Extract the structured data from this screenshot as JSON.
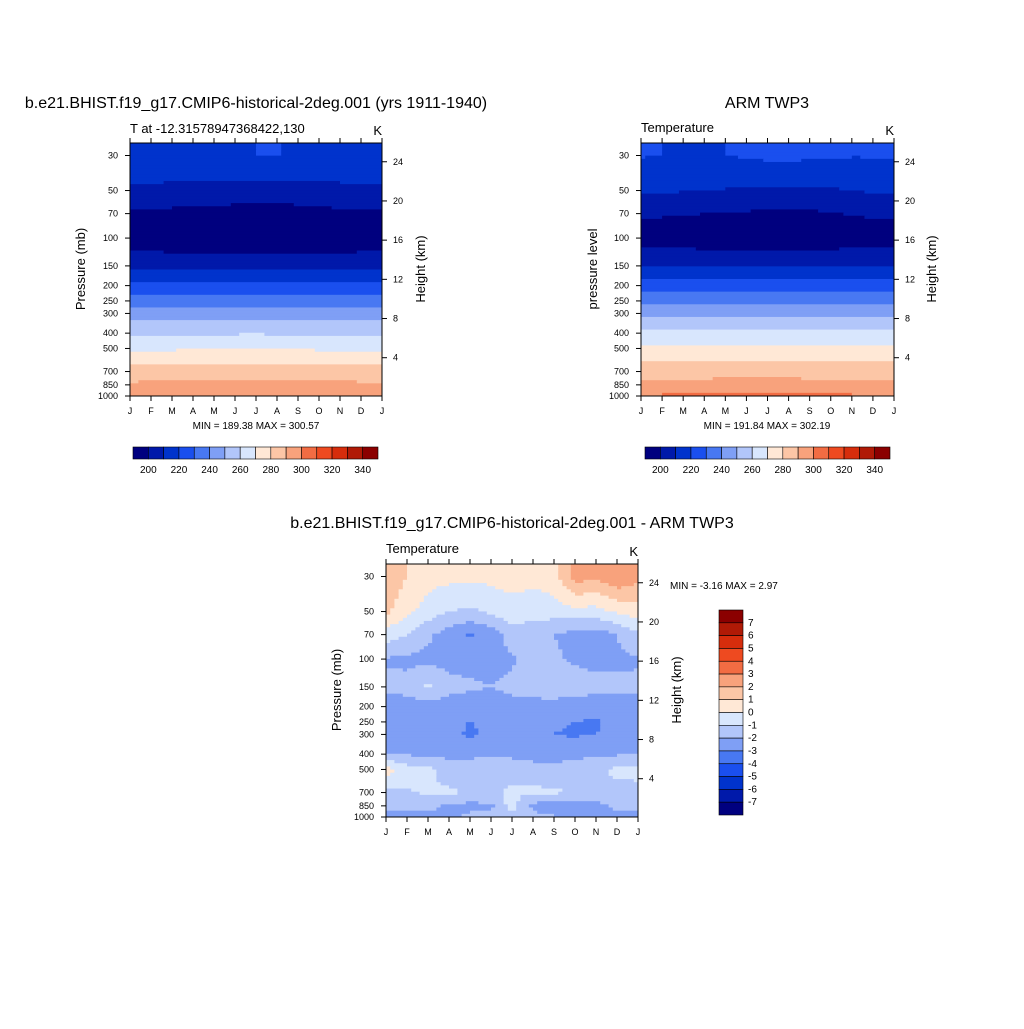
{
  "chart_data": [
    {
      "type": "heatmap",
      "title": "b.e21.BHIST.f19_g17.CMIP6-historical-2deg.001 (yrs 1911-1940)",
      "left_string": "T at -12.31578947368422,130",
      "right_string": "K",
      "ylabel": "Pressure (mb)",
      "ylabel_right": "Height (km)",
      "x_ticks": [
        "J",
        "F",
        "M",
        "A",
        "M",
        "J",
        "J",
        "A",
        "S",
        "O",
        "N",
        "D",
        "J"
      ],
      "y_ticks": [
        "30",
        "50",
        "70",
        "100",
        "150",
        "200",
        "250",
        "300",
        "400",
        "500",
        "700",
        "850",
        "1000"
      ],
      "y_right_ticks": [
        "24",
        "20",
        "16",
        "12",
        "8",
        "4"
      ],
      "stats": "MIN = 189.38 MAX = 300.57",
      "levels": [
        200,
        210,
        220,
        230,
        240,
        250,
        260,
        270,
        280,
        290,
        300,
        310,
        320,
        330,
        340
      ],
      "colorbar_labels": [
        "200",
        "220",
        "240",
        "260",
        "280",
        "300",
        "320",
        "340"
      ],
      "pressure_levels": [
        1000,
        850,
        700,
        500,
        400,
        300,
        250,
        200,
        150,
        100,
        70,
        50,
        30
      ],
      "months": [
        0,
        1,
        2,
        3,
        4,
        5,
        6,
        7,
        8,
        9,
        10,
        11,
        12
      ],
      "values": [
        [
          298.5,
          298.8,
          299.2,
          299.6,
          300.2,
          300.5,
          300.6,
          300.3,
          299.8,
          299.4,
          299,
          298.7,
          298.5
        ],
        [
          291.5,
          291.8,
          292.2,
          292.8,
          293.4,
          293.8,
          293.8,
          293.4,
          292.8,
          292.2,
          291.8,
          291.6,
          291.5
        ],
        [
          284.5,
          284.6,
          284.8,
          285,
          285.3,
          285.6,
          285.7,
          285.5,
          285.1,
          284.8,
          284.6,
          284.5,
          284.5
        ],
        [
          268.5,
          268.6,
          268.8,
          269,
          269.2,
          269.4,
          269.5,
          269.3,
          269,
          268.8,
          268.6,
          268.5,
          268.5
        ],
        [
          258.5,
          258.6,
          258.7,
          258.8,
          259,
          259.2,
          259.3,
          259.1,
          258.9,
          258.7,
          258.6,
          258.5,
          258.5
        ],
        [
          244.5,
          244.6,
          244.7,
          244.8,
          245,
          245.2,
          245.3,
          245.1,
          244.9,
          244.7,
          244.6,
          244.5,
          244.5
        ],
        [
          234.5,
          234.6,
          234.7,
          234.8,
          235,
          235.2,
          235.3,
          235.1,
          234.9,
          234.7,
          234.6,
          234.5,
          234.5
        ],
        [
          222.5,
          222.6,
          222.7,
          222.8,
          223,
          223.2,
          223.3,
          223.1,
          222.9,
          222.7,
          222.6,
          222.5,
          222.5
        ],
        [
          207.5,
          207.6,
          207.7,
          207.8,
          208,
          208.2,
          208.3,
          208.1,
          207.9,
          207.7,
          207.6,
          207.5,
          207.5
        ],
        [
          193,
          192.5,
          192,
          191,
          190.5,
          190,
          189.5,
          189.4,
          189.8,
          190.5,
          191.5,
          192.5,
          193
        ],
        [
          198.5,
          198,
          197.5,
          197,
          196.5,
          196,
          195.5,
          195.5,
          196,
          197,
          198,
          198.3,
          198.5
        ],
        [
          208.5,
          208,
          207.5,
          207,
          206.5,
          206,
          205.8,
          206,
          206.5,
          207,
          207.5,
          208,
          208.5
        ],
        [
          218.5,
          218,
          217.5,
          217.5,
          218,
          219,
          220,
          220.2,
          219.5,
          218.8,
          218.5,
          218.5,
          218.5
        ]
      ]
    },
    {
      "type": "heatmap",
      "title": "ARM TWP3",
      "left_string": "Temperature",
      "right_string": "K",
      "ylabel": "pressure level",
      "ylabel_right": "Height (km)",
      "x_ticks": [
        "J",
        "F",
        "M",
        "A",
        "M",
        "J",
        "J",
        "A",
        "S",
        "O",
        "N",
        "D",
        "J"
      ],
      "y_ticks": [
        "30",
        "50",
        "70",
        "100",
        "150",
        "200",
        "250",
        "300",
        "400",
        "500",
        "700",
        "850",
        "1000"
      ],
      "y_right_ticks": [
        "24",
        "20",
        "16",
        "12",
        "8",
        "4"
      ],
      "stats": "MIN = 191.84 MAX = 302.19",
      "levels": [
        200,
        210,
        220,
        230,
        240,
        250,
        260,
        270,
        280,
        290,
        300,
        310,
        320,
        330,
        340
      ],
      "colorbar_labels": [
        "200",
        "220",
        "240",
        "260",
        "280",
        "300",
        "320",
        "340"
      ],
      "pressure_levels": [
        1000,
        850,
        700,
        500,
        400,
        300,
        250,
        200,
        150,
        100,
        70,
        50,
        30
      ],
      "months": [
        0,
        1,
        2,
        3,
        4,
        5,
        6,
        7,
        8,
        9,
        10,
        11,
        12
      ],
      "values": [
        [
          301,
          301.2,
          301.5,
          301.8,
          302,
          302.1,
          302.2,
          302,
          301.8,
          301.5,
          301.2,
          301,
          301
        ],
        [
          292.5,
          292.7,
          293,
          293.3,
          293.6,
          293.9,
          294,
          293.7,
          293.3,
          293,
          292.7,
          292.5,
          292.5
        ],
        [
          285.5,
          285.6,
          285.8,
          286,
          286.2,
          286.4,
          286.5,
          286.3,
          286,
          285.8,
          285.6,
          285.5,
          285.5
        ],
        [
          271.5,
          271.6,
          271.7,
          271.8,
          272,
          272.2,
          272.3,
          272.1,
          271.9,
          271.7,
          271.6,
          271.5,
          271.5
        ],
        [
          261.5,
          261.6,
          261.7,
          261.8,
          262,
          262.2,
          262.3,
          262.1,
          261.9,
          261.7,
          261.6,
          261.5,
          261.5
        ],
        [
          247.5,
          247.6,
          247.7,
          247.8,
          248,
          248.2,
          248.3,
          248.1,
          247.9,
          247.7,
          247.6,
          247.5,
          247.5
        ],
        [
          237,
          237.1,
          237.2,
          237.3,
          237.5,
          237.7,
          237.8,
          237.6,
          237.4,
          237.2,
          237.1,
          237,
          237
        ],
        [
          225,
          225.1,
          225.2,
          225.3,
          225.5,
          225.7,
          225.8,
          225.6,
          225.4,
          225.2,
          225.1,
          225,
          225
        ],
        [
          209.5,
          209.6,
          209.7,
          209.8,
          210,
          210.2,
          210.3,
          210.1,
          209.9,
          209.7,
          209.6,
          209.5,
          209.5
        ],
        [
          195,
          194.5,
          194,
          193.5,
          193,
          192.5,
          192,
          191.84,
          192.5,
          193.5,
          194.3,
          194.8,
          195
        ],
        [
          201.5,
          201,
          200.5,
          200,
          199.5,
          199,
          198.5,
          198,
          198.5,
          199.5,
          200.5,
          201.2,
          201.5
        ],
        [
          211.5,
          211,
          210.5,
          210,
          209.5,
          209,
          208.5,
          208.2,
          208.5,
          209,
          210,
          211,
          211.5
        ],
        [
          220.5,
          220,
          219.5,
          219.5,
          220,
          221,
          222,
          222.5,
          221.5,
          220.8,
          220.5,
          220.5,
          220.5
        ]
      ]
    },
    {
      "type": "heatmap",
      "title": "b.e21.BHIST.f19_g17.CMIP6-historical-2deg.001 - ARM TWP3",
      "left_string": "Temperature",
      "right_string": "K",
      "ylabel": "Pressure (mb)",
      "ylabel_right": "Height (km)",
      "x_ticks": [
        "J",
        "F",
        "M",
        "A",
        "M",
        "J",
        "J",
        "A",
        "S",
        "O",
        "N",
        "D",
        "J"
      ],
      "y_ticks": [
        "30",
        "50",
        "70",
        "100",
        "150",
        "200",
        "250",
        "300",
        "400",
        "500",
        "700",
        "850",
        "1000"
      ],
      "y_right_ticks": [
        "24",
        "20",
        "16",
        "12",
        "8",
        "4"
      ],
      "stats": "MIN =  -3.16 MAX =   2.97",
      "levels": [
        -7,
        -6,
        -5,
        -4,
        -3,
        -2,
        -1,
        0,
        1,
        2,
        3,
        4,
        5,
        6,
        7
      ],
      "colorbar_labels": [
        "7",
        "6",
        "5",
        "4",
        "3",
        "2",
        "1",
        "0",
        "-1",
        "-2",
        "-3",
        "-4",
        "-5",
        "-6",
        "-7"
      ],
      "pressure_levels": [
        1000,
        850,
        700,
        500,
        400,
        300,
        250,
        200,
        150,
        100,
        70,
        50,
        30
      ],
      "months": [
        0,
        1,
        2,
        3,
        4,
        5,
        6,
        7,
        8,
        9,
        10,
        11,
        12
      ],
      "values": [
        [
          -2.5,
          -2.4,
          -2.3,
          -2.2,
          -1.8,
          -1.6,
          -1.6,
          -1.7,
          -1.9,
          -2.1,
          -2.2,
          -2.3,
          -2.5
        ],
        [
          -1.5,
          -1.6,
          -1.7,
          -2.2,
          -2.3,
          -2.2,
          -0.5,
          -2.3,
          -2.5,
          -2.7,
          -2.4,
          -1.8,
          -1.5
        ],
        [
          -1.2,
          -1.1,
          -0.9,
          -0.8,
          -1.2,
          -1.1,
          -0.9,
          -0.8,
          -0.9,
          -1.0,
          -1.1,
          -1.3,
          -1.2
        ],
        [
          0.5,
          -0.5,
          -0.8,
          -1.5,
          -1.6,
          -1.5,
          -1.2,
          -1.4,
          -1.6,
          -1.5,
          -1.2,
          -0.8,
          -0.8
        ],
        [
          -2.0,
          -2.1,
          -2.2,
          -2.3,
          -2.2,
          -2.1,
          -2.3,
          -2.6,
          -2.5,
          -2.3,
          -2.2,
          -2.1,
          -2.0
        ],
        [
          -2.8,
          -2.6,
          -2.4,
          -2.6,
          -3.2,
          -2.7,
          -2.3,
          -2.5,
          -3.0,
          -3.1,
          -3.0,
          -2.7,
          -2.6
        ],
        [
          -2.6,
          -2.5,
          -2.6,
          -2.8,
          -3.0,
          -2.8,
          -2.4,
          -2.5,
          -2.9,
          -3.0,
          -3.1,
          -2.8,
          -2.5
        ],
        [
          -2.3,
          -2.4,
          -2.5,
          -2.6,
          -2.7,
          -2.5,
          -2.3,
          -2.4,
          -2.5,
          -2.6,
          -2.7,
          -2.5,
          -2.3
        ],
        [
          -1.8,
          -1.7,
          -0.8,
          -1.6,
          -1.8,
          -2.0,
          -1.8,
          -1.5,
          -1.2,
          -1.4,
          -1.6,
          -1.8,
          -1.8
        ],
        [
          -2.1,
          -2.2,
          -2.3,
          -2.4,
          -2.5,
          -2.3,
          -2.1,
          -1.6,
          -1.8,
          -2.2,
          -2.4,
          -2.2,
          -2.1
        ],
        [
          -0.5,
          -1.0,
          -1.8,
          -2.5,
          -3.1,
          -2.6,
          -1.5,
          -1.6,
          -2.0,
          -2.4,
          -2.5,
          -2.0,
          -1.2
        ],
        [
          1.2,
          0.3,
          -0.5,
          -1.0,
          -1.2,
          -0.8,
          -0.4,
          -0.6,
          -0.5,
          -0.3,
          -0.4,
          0.2,
          0.5
        ],
        [
          1.8,
          1.0,
          0.4,
          0.3,
          0.2,
          0.3,
          0.4,
          0.3,
          0.6,
          2.5,
          2.2,
          2.9,
          2.4
        ]
      ]
    }
  ]
}
